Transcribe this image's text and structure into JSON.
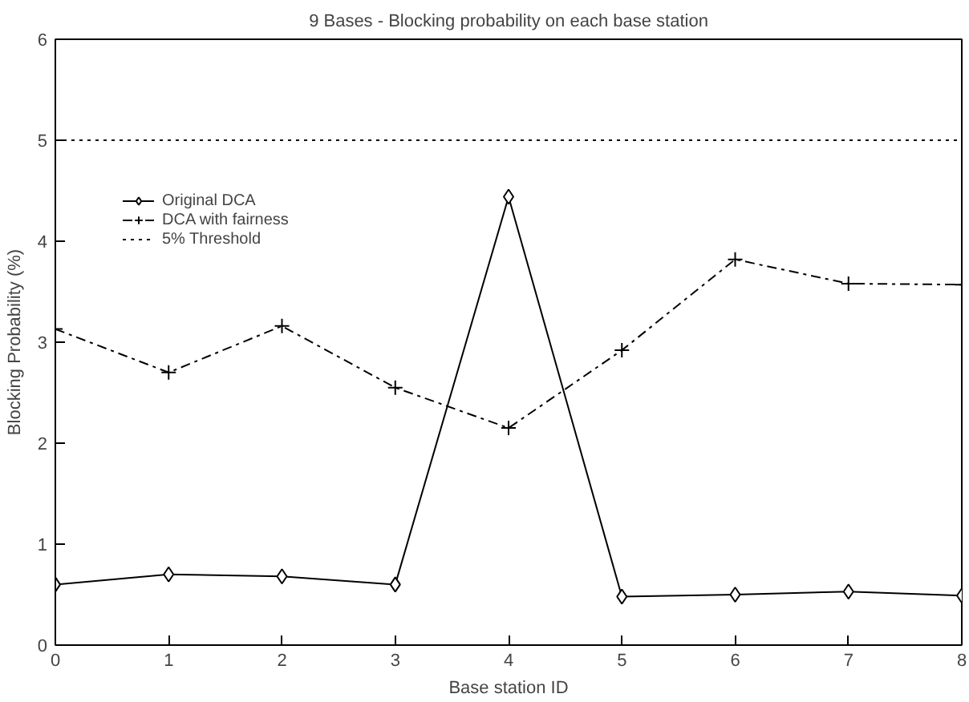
{
  "chart_data": {
    "type": "line",
    "title": "9 Bases - Blocking probability on each base station",
    "xlabel": "Base station ID",
    "ylabel": "Blocking Probability (%)",
    "x": [
      0,
      1,
      2,
      3,
      4,
      5,
      6,
      7,
      8
    ],
    "xlim": [
      0,
      8
    ],
    "xticks": [
      0,
      1,
      2,
      3,
      4,
      5,
      6,
      7,
      8
    ],
    "ylim": [
      0,
      6
    ],
    "yticks": [
      0,
      1,
      2,
      3,
      4,
      5,
      6
    ],
    "grid": false,
    "legend": "top left",
    "series": [
      {
        "name": "Original DCA",
        "color": "#000000",
        "marker": "diamond",
        "line_style": "solid",
        "values": [
          0.6,
          0.7,
          0.68,
          0.6,
          4.44,
          0.48,
          0.5,
          0.53,
          0.49
        ]
      },
      {
        "name": "DCA with fairness",
        "color": "#000000",
        "marker": "cross",
        "line_style": "dashed",
        "values": [
          3.13,
          2.7,
          3.16,
          2.55,
          2.15,
          2.92,
          3.82,
          3.58,
          3.57
        ]
      },
      {
        "name": "5% Threshold",
        "color": "#000000",
        "marker": "none",
        "line_style": "dotted",
        "values": [
          5,
          5,
          5,
          5,
          5,
          5,
          5,
          5,
          5
        ]
      }
    ]
  }
}
